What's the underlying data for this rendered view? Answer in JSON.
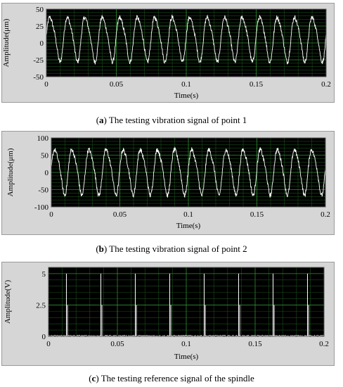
{
  "chart_data": [
    {
      "type": "line",
      "xlabel": "Time(s)",
      "ylabel": "Amplitude(μm)",
      "xlim": [
        0,
        0.2
      ],
      "ylim": [
        -50,
        50
      ],
      "x_ticks": [
        "0",
        "0.05",
        "0.1",
        "0.15",
        "0.2"
      ],
      "y_ticks": [
        "50",
        "25",
        "0",
        "-25",
        "-50"
      ],
      "grid": true,
      "series": [
        {
          "period": 0.0125,
          "max": 45,
          "min": -30,
          "color": "#ffffff"
        }
      ],
      "caption_letter": "a",
      "caption_text": "The testing vibration signal of point 1"
    },
    {
      "type": "line",
      "xlabel": "Time(s)",
      "ylabel": "Amplitude(μm)",
      "xlim": [
        0,
        0.2
      ],
      "ylim": [
        -100,
        100
      ],
      "x_ticks": [
        "0",
        "0.05",
        "0.1",
        "0.15",
        "0.2"
      ],
      "y_ticks": [
        "100",
        "50",
        "0",
        "-50",
        "-100"
      ],
      "grid": true,
      "series": [
        {
          "period": 0.0125,
          "max": 80,
          "min": -70,
          "color": "#ffffff"
        }
      ],
      "caption_letter": "b",
      "caption_text": "The testing vibration signal of point 2"
    },
    {
      "type": "line",
      "xlabel": "Time(s)",
      "ylabel": "Amplitude(V)",
      "xlim": [
        0,
        0.2
      ],
      "ylim": [
        0,
        5.5
      ],
      "x_ticks": [
        "0",
        "0.05",
        "0.1",
        "0.15",
        "0.2"
      ],
      "y_ticks": [
        "5",
        "2.5",
        "0"
      ],
      "grid": true,
      "series": [
        {
          "pulse_times": [
            0.013,
            0.038,
            0.063,
            0.088,
            0.113,
            0.138,
            0.163,
            0.188
          ],
          "pulse_height": 5,
          "pulse_step": 2.5,
          "color": "#ffffff"
        }
      ],
      "caption_letter": "c",
      "caption_text": "The testing reference signal of the spindle"
    }
  ]
}
